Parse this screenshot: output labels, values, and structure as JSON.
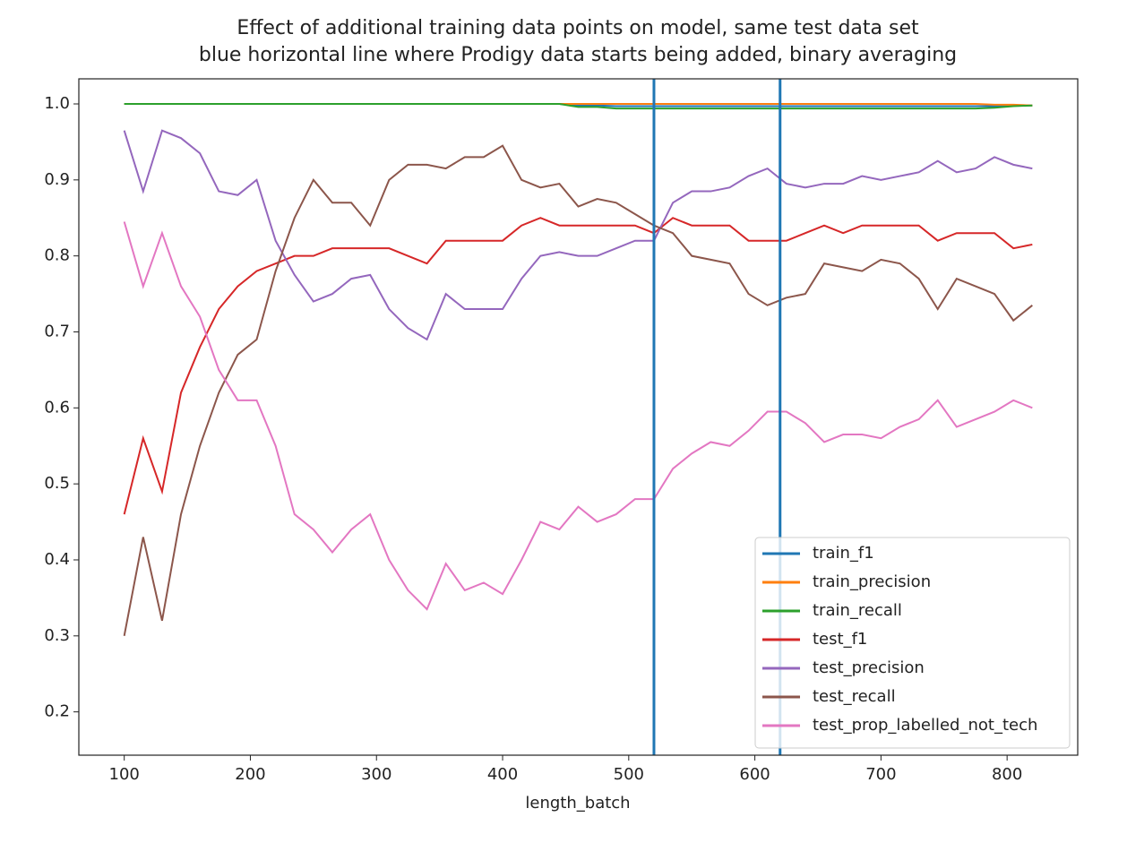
{
  "chart_data": {
    "type": "line",
    "title": "Effect of additional training data points on model, same test data set",
    "subtitle": "blue horizontal line where Prodigy data starts being added, binary averaging",
    "x_label": "length_batch",
    "x": [
      100,
      115,
      130,
      145,
      160,
      175,
      190,
      205,
      220,
      235,
      250,
      265,
      280,
      295,
      310,
      325,
      340,
      355,
      370,
      385,
      400,
      415,
      430,
      445,
      460,
      475,
      490,
      505,
      520,
      535,
      550,
      565,
      580,
      595,
      610,
      625,
      640,
      655,
      670,
      685,
      700,
      715,
      730,
      745,
      760,
      775,
      790,
      805,
      820
    ],
    "series": [
      {
        "name": "train_f1",
        "color": "#1f77b4",
        "values": [
          1,
          1,
          1,
          1,
          1,
          1,
          1,
          1,
          1,
          1,
          1,
          1,
          1,
          1,
          1,
          1,
          1,
          1,
          1,
          1,
          1,
          1,
          1,
          1,
          0.998,
          0.998,
          0.997,
          0.997,
          0.997,
          0.997,
          0.997,
          0.997,
          0.997,
          0.997,
          0.997,
          0.997,
          0.997,
          0.997,
          0.997,
          0.997,
          0.997,
          0.997,
          0.997,
          0.997,
          0.997,
          0.997,
          0.997,
          0.998,
          0.998
        ]
      },
      {
        "name": "train_precision",
        "color": "#ff7f0e",
        "values": [
          1,
          1,
          1,
          1,
          1,
          1,
          1,
          1,
          1,
          1,
          1,
          1,
          1,
          1,
          1,
          1,
          1,
          1,
          1,
          1,
          1,
          1,
          1,
          1,
          1,
          1,
          1,
          1,
          1,
          1,
          1,
          1,
          1,
          1,
          1,
          1,
          1,
          1,
          1,
          1,
          1,
          1,
          1,
          1,
          1,
          1,
          0.999,
          0.999,
          0.998
        ]
      },
      {
        "name": "train_recall",
        "color": "#2ca02c",
        "values": [
          1,
          1,
          1,
          1,
          1,
          1,
          1,
          1,
          1,
          1,
          1,
          1,
          1,
          1,
          1,
          1,
          1,
          1,
          1,
          1,
          1,
          1,
          1,
          1,
          0.996,
          0.996,
          0.994,
          0.994,
          0.994,
          0.994,
          0.994,
          0.994,
          0.994,
          0.994,
          0.994,
          0.994,
          0.994,
          0.994,
          0.994,
          0.994,
          0.994,
          0.994,
          0.994,
          0.994,
          0.994,
          0.994,
          0.995,
          0.997,
          0.998
        ]
      },
      {
        "name": "test_f1",
        "color": "#d62728",
        "values": [
          0.46,
          0.56,
          0.49,
          0.62,
          0.68,
          0.73,
          0.76,
          0.78,
          0.79,
          0.8,
          0.8,
          0.81,
          0.81,
          0.81,
          0.81,
          0.8,
          0.79,
          0.82,
          0.82,
          0.82,
          0.82,
          0.84,
          0.85,
          0.84,
          0.84,
          0.84,
          0.84,
          0.84,
          0.83,
          0.85,
          0.84,
          0.84,
          0.84,
          0.82,
          0.82,
          0.82,
          0.83,
          0.84,
          0.83,
          0.84,
          0.84,
          0.84,
          0.84,
          0.82,
          0.83,
          0.83,
          0.83,
          0.81,
          0.815
        ]
      },
      {
        "name": "test_precision",
        "color": "#9467bd",
        "values": [
          0.965,
          0.885,
          0.965,
          0.955,
          0.935,
          0.885,
          0.88,
          0.9,
          0.82,
          0.775,
          0.74,
          0.75,
          0.77,
          0.775,
          0.73,
          0.705,
          0.69,
          0.75,
          0.73,
          0.73,
          0.73,
          0.77,
          0.8,
          0.805,
          0.8,
          0.8,
          0.81,
          0.82,
          0.82,
          0.87,
          0.885,
          0.885,
          0.89,
          0.905,
          0.915,
          0.895,
          0.89,
          0.895,
          0.895,
          0.905,
          0.9,
          0.905,
          0.91,
          0.925,
          0.91,
          0.915,
          0.93,
          0.92,
          0.915
        ]
      },
      {
        "name": "test_recall",
        "color": "#8c564b",
        "values": [
          0.3,
          0.43,
          0.32,
          0.46,
          0.55,
          0.62,
          0.67,
          0.69,
          0.78,
          0.85,
          0.9,
          0.87,
          0.87,
          0.84,
          0.9,
          0.92,
          0.92,
          0.915,
          0.93,
          0.93,
          0.945,
          0.9,
          0.89,
          0.895,
          0.865,
          0.875,
          0.87,
          0.855,
          0.84,
          0.83,
          0.8,
          0.795,
          0.79,
          0.75,
          0.735,
          0.745,
          0.75,
          0.79,
          0.785,
          0.78,
          0.795,
          0.79,
          0.77,
          0.73,
          0.77,
          0.76,
          0.75,
          0.715,
          0.735
        ]
      },
      {
        "name": "test_prop_labelled_not_tech",
        "color": "#e377c2",
        "values": [
          0.845,
          0.76,
          0.83,
          0.76,
          0.72,
          0.65,
          0.61,
          0.61,
          0.55,
          0.46,
          0.44,
          0.41,
          0.44,
          0.46,
          0.4,
          0.36,
          0.335,
          0.395,
          0.36,
          0.37,
          0.355,
          0.4,
          0.45,
          0.44,
          0.47,
          0.45,
          0.46,
          0.48,
          0.48,
          0.52,
          0.54,
          0.555,
          0.55,
          0.57,
          0.595,
          0.595,
          0.58,
          0.555,
          0.565,
          0.565,
          0.56,
          0.575,
          0.585,
          0.61,
          0.575,
          0.585,
          0.595,
          0.61,
          0.6
        ]
      }
    ],
    "vlines": [
      520,
      620
    ],
    "vline_color": "#1f77b4",
    "xlim": [
      64,
      856
    ],
    "ylim": [
      0.143,
      1.033
    ],
    "xticks": [
      100,
      200,
      300,
      400,
      500,
      600,
      700,
      800
    ],
    "yticks": [
      0.2,
      0.3,
      0.4,
      0.5,
      0.6,
      0.7,
      0.8,
      0.9,
      {
        "value": 1,
        "label": "1.0"
      }
    ],
    "legend": "lower right"
  }
}
